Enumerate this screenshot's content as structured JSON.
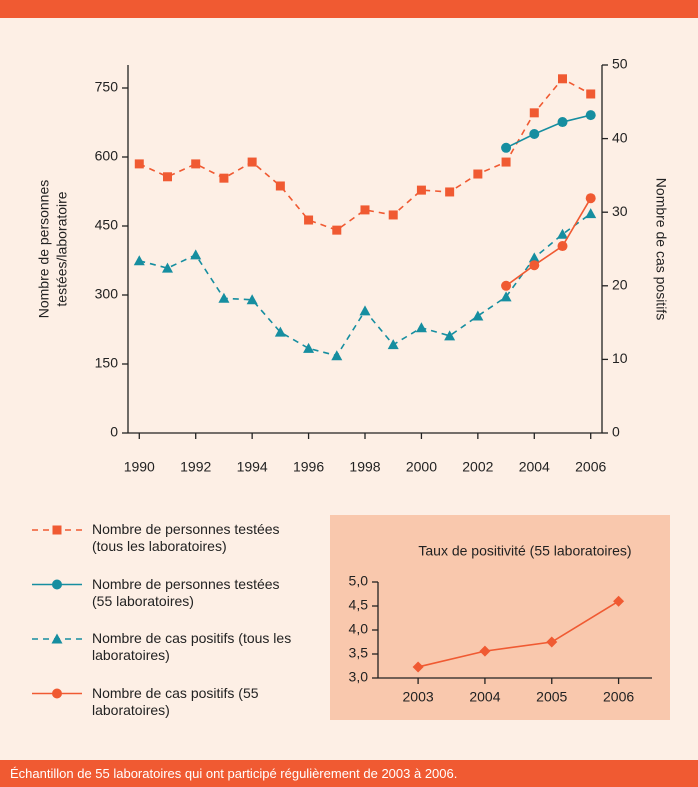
{
  "chart_data": [
    {
      "type": "line",
      "ylabel": [
        "Nombre de personnes",
        "testées/laboratoire"
      ],
      "y2label": "Nombre de cas positifs",
      "xlim": [
        1989.6,
        2006.4
      ],
      "xticks": [
        1990,
        1992,
        1994,
        1996,
        1998,
        2000,
        2002,
        2004,
        2006
      ],
      "ylim": [
        0,
        800
      ],
      "yticks": [
        0,
        150,
        300,
        450,
        600,
        750
      ],
      "y2lim": [
        0,
        50
      ],
      "y2ticks": [
        0,
        10,
        20,
        30,
        40,
        50
      ],
      "series": [
        {
          "name": "Nombre de personnes testées (tous les laboratoires)",
          "color": "#f05a32",
          "marker": "square",
          "dashed": true,
          "x": [
            1990,
            1991,
            1992,
            1993,
            1994,
            1995,
            1996,
            1997,
            1998,
            1999,
            2000,
            2001,
            2002,
            2003,
            2004,
            2005,
            2006
          ],
          "values": [
            585,
            557,
            585,
            554,
            589,
            537,
            463,
            441,
            485,
            474,
            528,
            524,
            563,
            589,
            696,
            770,
            737
          ]
        },
        {
          "name": "Nombre de personnes testées (55 laboratoires)",
          "color": "#168ea0",
          "marker": "circle",
          "dashed": false,
          "x": [
            2003,
            2004,
            2005,
            2006
          ],
          "values": [
            620,
            650,
            676,
            691
          ]
        },
        {
          "name": "Nombre de cas positifs (tous les laboratoires)",
          "color": "#168ea0",
          "marker": "triangle",
          "dashed": true,
          "axis": "y2",
          "x": [
            1990,
            1991,
            1992,
            1993,
            1994,
            1995,
            1996,
            1997,
            1998,
            1999,
            2000,
            2001,
            2002,
            2003,
            2004,
            2005,
            2006
          ],
          "values": [
            23.4,
            22.4,
            24.2,
            18.3,
            18.1,
            13.7,
            11.5,
            10.5,
            16.6,
            12.0,
            14.3,
            13.2,
            15.9,
            18.5,
            23.8,
            27.0,
            29.8
          ]
        },
        {
          "name": "Nombre de cas positifs (55 laboratoires)",
          "color": "#f05a32",
          "marker": "circle",
          "dashed": false,
          "axis": "y2",
          "x": [
            2003,
            2004,
            2005,
            2006
          ],
          "values": [
            20.0,
            22.8,
            25.4,
            31.9
          ]
        }
      ]
    },
    {
      "type": "line",
      "title": "Taux de positivité (55 laboratoires)",
      "xlim": [
        2002.4,
        2006.5
      ],
      "xticks": [
        2003,
        2004,
        2005,
        2006
      ],
      "ylim": [
        3,
        5
      ],
      "yticks": [
        {
          "value": 3,
          "label": "3,0"
        },
        {
          "value": 3.5,
          "label": "3,5"
        },
        {
          "value": 4,
          "label": "4,0"
        },
        {
          "value": 4.5,
          "label": "4,5"
        },
        {
          "value": 5,
          "label": "5,0"
        }
      ],
      "series": [
        {
          "color": "#f05a32",
          "marker": "diamond",
          "dashed": false,
          "x": [
            2003,
            2004,
            2005,
            2006
          ],
          "values": [
            3.23,
            3.56,
            3.75,
            4.6
          ]
        }
      ]
    }
  ],
  "footnote": "Échantillon de 55 laboratoires qui ont participé régulièrement de 2003 à 2006."
}
